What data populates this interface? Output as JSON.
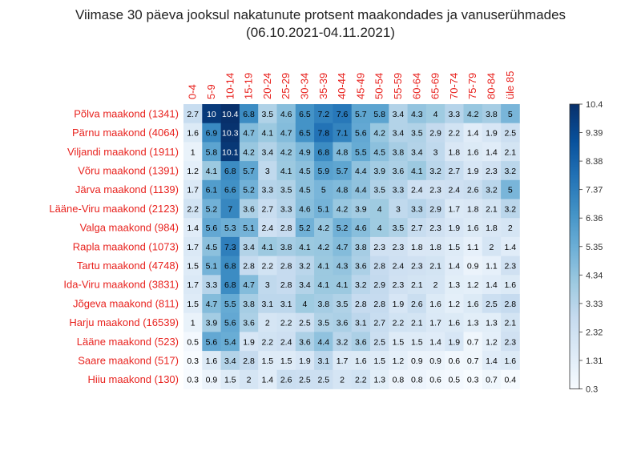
{
  "title": "Viimase 30 päeva jooksul nakatunute protsent maakondades ja vanuserühmades",
  "subtitle": "(06.10.2021-04.11.2021)",
  "colors": {
    "label_red": "#e8231f",
    "low": "#f7fbff",
    "high": "#08306b",
    "text_dark": "#000000",
    "text_light": "#ffffff"
  },
  "chart_data": {
    "type": "heatmap",
    "title": "Viimase 30 päeva jooksul nakatunute protsent maakondades ja vanuserühmades",
    "subtitle": "(06.10.2021-04.11.2021)",
    "columns": [
      "0-4",
      "5-9",
      "10-14",
      "15-19",
      "20-24",
      "25-29",
      "30-34",
      "35-39",
      "40-44",
      "45-49",
      "50-54",
      "55-59",
      "60-64",
      "65-69",
      "70-74",
      "75-79",
      "80-84",
      "üle 85"
    ],
    "rows": [
      "Põlva maakond (1341)",
      "Pärnu maakond (4064)",
      "Viljandi maakond (1911)",
      "Võru maakond (1391)",
      "Järva maakond (1139)",
      "Lääne-Viru maakond (2123)",
      "Valga maakond (984)",
      "Rapla maakond (1073)",
      "Tartu maakond (4748)",
      "Ida-Viru maakond (3831)",
      "Jõgeva maakond (811)",
      "Harju maakond (16539)",
      "Lääne maakond (523)",
      "Saare maakond (517)",
      "Hiiu maakond (130)"
    ],
    "values": [
      [
        2.7,
        10,
        10.4,
        6.8,
        3.5,
        4.6,
        6.5,
        7.2,
        7.6,
        5.7,
        5.8,
        3.4,
        4.3,
        4,
        3.3,
        4.2,
        3.8,
        5
      ],
      [
        1.6,
        6.9,
        10.3,
        4.7,
        4.1,
        4.7,
        6.5,
        7.8,
        7.1,
        5.6,
        4.2,
        3.4,
        3.5,
        2.9,
        2.2,
        1.4,
        1.9,
        2.5
      ],
      [
        1,
        5.8,
        10.1,
        4.2,
        3.4,
        4.2,
        4.9,
        6.8,
        4.8,
        5.5,
        4.5,
        3.8,
        3.4,
        3,
        1.8,
        1.6,
        1.4,
        2.1
      ],
      [
        1.2,
        4.1,
        6.8,
        5.7,
        3,
        4.1,
        4.5,
        5.9,
        5.7,
        4.4,
        3.9,
        3.6,
        4.1,
        3.2,
        2.7,
        1.9,
        2.3,
        3.2
      ],
      [
        1.7,
        6.1,
        6.6,
        5.2,
        3.3,
        3.5,
        4.5,
        5,
        4.8,
        4.4,
        3.5,
        3.3,
        2.4,
        2.3,
        2.4,
        2.6,
        3.2,
        5
      ],
      [
        2.2,
        5.2,
        7,
        3.6,
        2.7,
        3.3,
        4.6,
        5.1,
        4.2,
        3.9,
        4,
        3,
        3.3,
        2.9,
        1.7,
        1.8,
        2.1,
        3.2
      ],
      [
        1.4,
        5.6,
        5.3,
        5.1,
        2.4,
        2.8,
        5.2,
        4.2,
        5.2,
        4.6,
        4,
        3.5,
        2.7,
        2.3,
        1.9,
        1.6,
        1.8,
        2
      ],
      [
        1.7,
        4.5,
        7.3,
        3.4,
        4.1,
        3.8,
        4.1,
        4.2,
        4.7,
        3.8,
        2.3,
        2.3,
        1.8,
        1.8,
        1.5,
        1.1,
        2,
        1.4
      ],
      [
        1.5,
        5.1,
        6.8,
        2.8,
        2.2,
        2.8,
        3.2,
        4.1,
        4.3,
        3.6,
        2.8,
        2.4,
        2.3,
        2.1,
        1.4,
        0.9,
        1.1,
        2.3
      ],
      [
        1.7,
        3.3,
        6.8,
        4.7,
        3,
        2.8,
        3.4,
        4.1,
        4.1,
        3.2,
        2.9,
        2.3,
        2.1,
        2,
        1.3,
        1.2,
        1.4,
        1.6
      ],
      [
        1.5,
        4.7,
        5.5,
        3.8,
        3.1,
        3.1,
        4,
        3.8,
        3.5,
        2.8,
        2.8,
        1.9,
        2.6,
        1.6,
        1.2,
        1.6,
        2.5,
        2.8
      ],
      [
        1,
        3.9,
        5.6,
        3.6,
        2,
        2.2,
        2.5,
        3.5,
        3.6,
        3.1,
        2.7,
        2.2,
        2.1,
        1.7,
        1.6,
        1.3,
        1.3,
        2.1
      ],
      [
        0.5,
        5.6,
        5.4,
        1.9,
        2.2,
        2.4,
        3.6,
        4.4,
        3.2,
        3.6,
        2.5,
        1.5,
        1.5,
        1.4,
        1.9,
        0.7,
        1.2,
        2.3
      ],
      [
        0.3,
        1.6,
        3.4,
        2.8,
        1.5,
        1.5,
        1.9,
        3.1,
        1.7,
        1.6,
        1.5,
        1.2,
        0.9,
        0.9,
        0.6,
        0.7,
        1.4,
        1.6
      ],
      [
        0.3,
        0.9,
        1.5,
        2,
        1.4,
        2.6,
        2.5,
        2.5,
        2,
        2.2,
        1.3,
        0.8,
        0.8,
        0.6,
        0.5,
        0.3,
        0.7,
        0.4
      ]
    ],
    "colorbar": {
      "min": 0.3,
      "max": 10.4,
      "ticks": [
        "10.4",
        "9.39",
        "8.38",
        "7.37",
        "6.36",
        "5.35",
        "4.34",
        "3.33",
        "2.32",
        "1.31",
        "0.3"
      ]
    }
  }
}
